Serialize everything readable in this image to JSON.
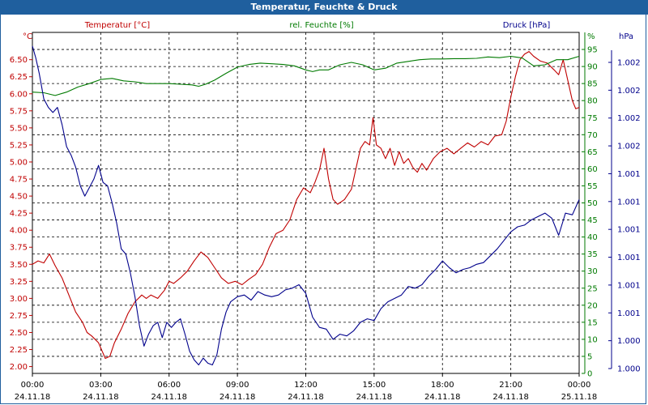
{
  "window": {
    "title": "Temperatur, Feuchte & Druck"
  },
  "colors": {
    "temp": "#c00000",
    "hum": "#007a00",
    "press": "#00008b",
    "grid": "#000000",
    "title_bg": "#1f5f9e"
  },
  "chart_data": {
    "type": "line",
    "title": "Temperatur, Feuchte & Druck",
    "x": {
      "range_hours": [
        0,
        24
      ],
      "tick_times": [
        "00:00",
        "03:00",
        "06:00",
        "09:00",
        "12:00",
        "15:00",
        "18:00",
        "21:00",
        "00:00"
      ],
      "tick_dates": [
        "24.11.18",
        "24.11.18",
        "24.11.18",
        "24.11.18",
        "24.11.18",
        "24.11.18",
        "24.11.18",
        "24.11.18",
        "25.11.18"
      ]
    },
    "axes": {
      "temp": {
        "unit_label": "°C",
        "range": [
          1.9,
          6.9
        ],
        "ticks": [
          "2.00",
          "2.25",
          "2.50",
          "2.75",
          "3.00",
          "3.25",
          "3.50",
          "3.75",
          "4.00",
          "4.25",
          "4.50",
          "4.75",
          "5.00",
          "5.25",
          "5.50",
          "5.75",
          "6.00",
          "6.25",
          "6.50"
        ]
      },
      "hum": {
        "unit_label": "%",
        "range": [
          0,
          100
        ],
        "ticks": [
          "0",
          "5",
          "10",
          "15",
          "20",
          "25",
          "30",
          "35",
          "40",
          "45",
          "50",
          "55",
          "60",
          "65",
          "70",
          "75",
          "80",
          "85",
          "90",
          "95"
        ]
      },
      "press": {
        "unit_label": "hPa",
        "range": [
          0,
          20
        ],
        "ticks": [
          "1.000",
          "1.000",
          "1.001",
          "1.001",
          "1.001",
          "1.001",
          "1.001",
          "1.001",
          "1.002",
          "1.002",
          "1.002",
          "1.002"
        ]
      }
    },
    "series": [
      {
        "name": "Temperatur [°C]",
        "axis": "temp",
        "points": [
          [
            0,
            3.5
          ],
          [
            0.25,
            3.55
          ],
          [
            0.5,
            3.52
          ],
          [
            0.75,
            3.65
          ],
          [
            1.0,
            3.48
          ],
          [
            1.3,
            3.3
          ],
          [
            1.6,
            3.05
          ],
          [
            1.9,
            2.8
          ],
          [
            2.2,
            2.65
          ],
          [
            2.4,
            2.5
          ],
          [
            2.6,
            2.45
          ],
          [
            2.9,
            2.35
          ],
          [
            3.2,
            2.12
          ],
          [
            3.4,
            2.15
          ],
          [
            3.6,
            2.35
          ],
          [
            3.9,
            2.55
          ],
          [
            4.2,
            2.78
          ],
          [
            4.5,
            2.95
          ],
          [
            4.8,
            3.05
          ],
          [
            5.0,
            3.0
          ],
          [
            5.2,
            3.05
          ],
          [
            5.5,
            3.0
          ],
          [
            5.8,
            3.12
          ],
          [
            6.0,
            3.25
          ],
          [
            6.2,
            3.22
          ],
          [
            6.5,
            3.3
          ],
          [
            6.8,
            3.4
          ],
          [
            7.1,
            3.55
          ],
          [
            7.4,
            3.68
          ],
          [
            7.7,
            3.6
          ],
          [
            8.0,
            3.45
          ],
          [
            8.3,
            3.3
          ],
          [
            8.6,
            3.22
          ],
          [
            8.9,
            3.25
          ],
          [
            9.2,
            3.2
          ],
          [
            9.5,
            3.28
          ],
          [
            9.8,
            3.35
          ],
          [
            10.1,
            3.5
          ],
          [
            10.4,
            3.75
          ],
          [
            10.7,
            3.95
          ],
          [
            11.0,
            4.0
          ],
          [
            11.3,
            4.15
          ],
          [
            11.6,
            4.45
          ],
          [
            11.9,
            4.62
          ],
          [
            12.2,
            4.55
          ],
          [
            12.4,
            4.7
          ],
          [
            12.6,
            4.88
          ],
          [
            12.8,
            5.2
          ],
          [
            13.0,
            4.75
          ],
          [
            13.2,
            4.45
          ],
          [
            13.4,
            4.38
          ],
          [
            13.7,
            4.45
          ],
          [
            14.0,
            4.6
          ],
          [
            14.2,
            4.9
          ],
          [
            14.4,
            5.2
          ],
          [
            14.6,
            5.3
          ],
          [
            14.8,
            5.25
          ],
          [
            14.95,
            5.65
          ],
          [
            15.1,
            5.25
          ],
          [
            15.3,
            5.2
          ],
          [
            15.5,
            5.05
          ],
          [
            15.7,
            5.2
          ],
          [
            15.9,
            4.95
          ],
          [
            16.1,
            5.15
          ],
          [
            16.3,
            4.98
          ],
          [
            16.5,
            5.05
          ],
          [
            16.7,
            4.92
          ],
          [
            16.9,
            4.85
          ],
          [
            17.1,
            4.98
          ],
          [
            17.3,
            4.88
          ],
          [
            17.6,
            5.05
          ],
          [
            17.9,
            5.15
          ],
          [
            18.2,
            5.2
          ],
          [
            18.5,
            5.12
          ],
          [
            18.8,
            5.2
          ],
          [
            19.1,
            5.28
          ],
          [
            19.4,
            5.22
          ],
          [
            19.7,
            5.3
          ],
          [
            20.0,
            5.25
          ],
          [
            20.3,
            5.38
          ],
          [
            20.6,
            5.4
          ],
          [
            20.8,
            5.6
          ],
          [
            21.0,
            5.95
          ],
          [
            21.2,
            6.25
          ],
          [
            21.4,
            6.5
          ],
          [
            21.6,
            6.58
          ],
          [
            21.8,
            6.62
          ],
          [
            22.0,
            6.55
          ],
          [
            22.3,
            6.48
          ],
          [
            22.6,
            6.45
          ],
          [
            22.9,
            6.35
          ],
          [
            23.1,
            6.28
          ],
          [
            23.3,
            6.5
          ],
          [
            23.5,
            6.2
          ],
          [
            23.7,
            5.9
          ],
          [
            23.85,
            5.78
          ],
          [
            24.0,
            5.8
          ]
        ]
      },
      {
        "name": "rel. Feuchte [%]",
        "axis": "hum",
        "points": [
          [
            0,
            82.5
          ],
          [
            0.5,
            82.3
          ],
          [
            1.0,
            81.5
          ],
          [
            1.5,
            82.5
          ],
          [
            2.0,
            84
          ],
          [
            2.5,
            85
          ],
          [
            3.0,
            86.2
          ],
          [
            3.5,
            86.5
          ],
          [
            4.0,
            85.8
          ],
          [
            4.5,
            85.5
          ],
          [
            5.0,
            85
          ],
          [
            5.5,
            85
          ],
          [
            6.0,
            85
          ],
          [
            6.5,
            84.8
          ],
          [
            7.0,
            84.6
          ],
          [
            7.3,
            84.2
          ],
          [
            7.6,
            84.8
          ],
          [
            8.0,
            86
          ],
          [
            8.5,
            88
          ],
          [
            9.0,
            89.8
          ],
          [
            9.5,
            90.6
          ],
          [
            10.0,
            91
          ],
          [
            10.5,
            90.8
          ],
          [
            11.0,
            90.6
          ],
          [
            11.5,
            90.2
          ],
          [
            12.0,
            89
          ],
          [
            12.3,
            88.5
          ],
          [
            12.6,
            89
          ],
          [
            13.0,
            89
          ],
          [
            13.5,
            90.5
          ],
          [
            14.0,
            91.2
          ],
          [
            14.5,
            90.5
          ],
          [
            15.0,
            89
          ],
          [
            15.5,
            89.5
          ],
          [
            16.0,
            91
          ],
          [
            16.5,
            91.5
          ],
          [
            17.0,
            92
          ],
          [
            17.5,
            92.2
          ],
          [
            18.0,
            92.2
          ],
          [
            18.5,
            92.3
          ],
          [
            19.0,
            92.3
          ],
          [
            19.5,
            92.4
          ],
          [
            20.0,
            92.8
          ],
          [
            20.5,
            92.6
          ],
          [
            21.0,
            93
          ],
          [
            21.5,
            92.5
          ],
          [
            22.0,
            90.2
          ],
          [
            22.5,
            90.5
          ],
          [
            23.0,
            92
          ],
          [
            23.5,
            92
          ],
          [
            24.0,
            93
          ]
        ]
      },
      {
        "name": "Druck [hPa]",
        "axis": "press",
        "points": [
          [
            0,
            19.2
          ],
          [
            0.15,
            18.5
          ],
          [
            0.3,
            17.6
          ],
          [
            0.5,
            16.1
          ],
          [
            0.7,
            15.6
          ],
          [
            0.9,
            15.3
          ],
          [
            1.1,
            15.6
          ],
          [
            1.3,
            14.6
          ],
          [
            1.5,
            13.3
          ],
          [
            1.7,
            12.8
          ],
          [
            1.9,
            12.1
          ],
          [
            2.1,
            11.0
          ],
          [
            2.3,
            10.4
          ],
          [
            2.5,
            10.9
          ],
          [
            2.7,
            11.4
          ],
          [
            2.9,
            12.2
          ],
          [
            3.1,
            11.2
          ],
          [
            3.3,
            11.0
          ],
          [
            3.5,
            10.0
          ],
          [
            3.7,
            8.8
          ],
          [
            3.9,
            7.3
          ],
          [
            4.1,
            7.0
          ],
          [
            4.3,
            5.9
          ],
          [
            4.5,
            4.5
          ],
          [
            4.7,
            2.8
          ],
          [
            4.9,
            1.6
          ],
          [
            5.1,
            2.3
          ],
          [
            5.3,
            2.8
          ],
          [
            5.5,
            3.0
          ],
          [
            5.7,
            2.1
          ],
          [
            5.9,
            3.0
          ],
          [
            6.1,
            2.7
          ],
          [
            6.3,
            3.0
          ],
          [
            6.5,
            3.2
          ],
          [
            6.7,
            2.3
          ],
          [
            6.9,
            1.3
          ],
          [
            7.1,
            0.8
          ],
          [
            7.3,
            0.5
          ],
          [
            7.5,
            0.9
          ],
          [
            7.7,
            0.6
          ],
          [
            7.9,
            0.5
          ],
          [
            8.1,
            1.1
          ],
          [
            8.3,
            2.6
          ],
          [
            8.5,
            3.6
          ],
          [
            8.7,
            4.2
          ],
          [
            9.0,
            4.5
          ],
          [
            9.3,
            4.6
          ],
          [
            9.6,
            4.3
          ],
          [
            9.9,
            4.8
          ],
          [
            10.2,
            4.6
          ],
          [
            10.5,
            4.5
          ],
          [
            10.8,
            4.6
          ],
          [
            11.1,
            4.9
          ],
          [
            11.4,
            5.0
          ],
          [
            11.7,
            5.2
          ],
          [
            12.0,
            4.7
          ],
          [
            12.3,
            3.3
          ],
          [
            12.6,
            2.7
          ],
          [
            12.9,
            2.6
          ],
          [
            13.2,
            2.0
          ],
          [
            13.5,
            2.3
          ],
          [
            13.8,
            2.2
          ],
          [
            14.1,
            2.5
          ],
          [
            14.4,
            3.0
          ],
          [
            14.7,
            3.2
          ],
          [
            15.0,
            3.1
          ],
          [
            15.3,
            3.8
          ],
          [
            15.6,
            4.2
          ],
          [
            15.9,
            4.4
          ],
          [
            16.2,
            4.6
          ],
          [
            16.5,
            5.1
          ],
          [
            16.8,
            5.0
          ],
          [
            17.1,
            5.2
          ],
          [
            17.4,
            5.7
          ],
          [
            17.7,
            6.1
          ],
          [
            18.0,
            6.6
          ],
          [
            18.3,
            6.2
          ],
          [
            18.6,
            5.9
          ],
          [
            18.9,
            6.1
          ],
          [
            19.2,
            6.2
          ],
          [
            19.5,
            6.4
          ],
          [
            19.8,
            6.5
          ],
          [
            20.1,
            6.9
          ],
          [
            20.4,
            7.3
          ],
          [
            20.7,
            7.8
          ],
          [
            21.0,
            8.3
          ],
          [
            21.3,
            8.6
          ],
          [
            21.6,
            8.7
          ],
          [
            21.9,
            9.0
          ],
          [
            22.2,
            9.2
          ],
          [
            22.5,
            9.4
          ],
          [
            22.8,
            9.1
          ],
          [
            23.1,
            8.1
          ],
          [
            23.4,
            9.4
          ],
          [
            23.7,
            9.3
          ],
          [
            24.0,
            10.2
          ]
        ]
      }
    ],
    "legend": [
      "Temperatur [°C]",
      "rel. Feuchte [%]",
      "Druck [hPa]"
    ]
  }
}
